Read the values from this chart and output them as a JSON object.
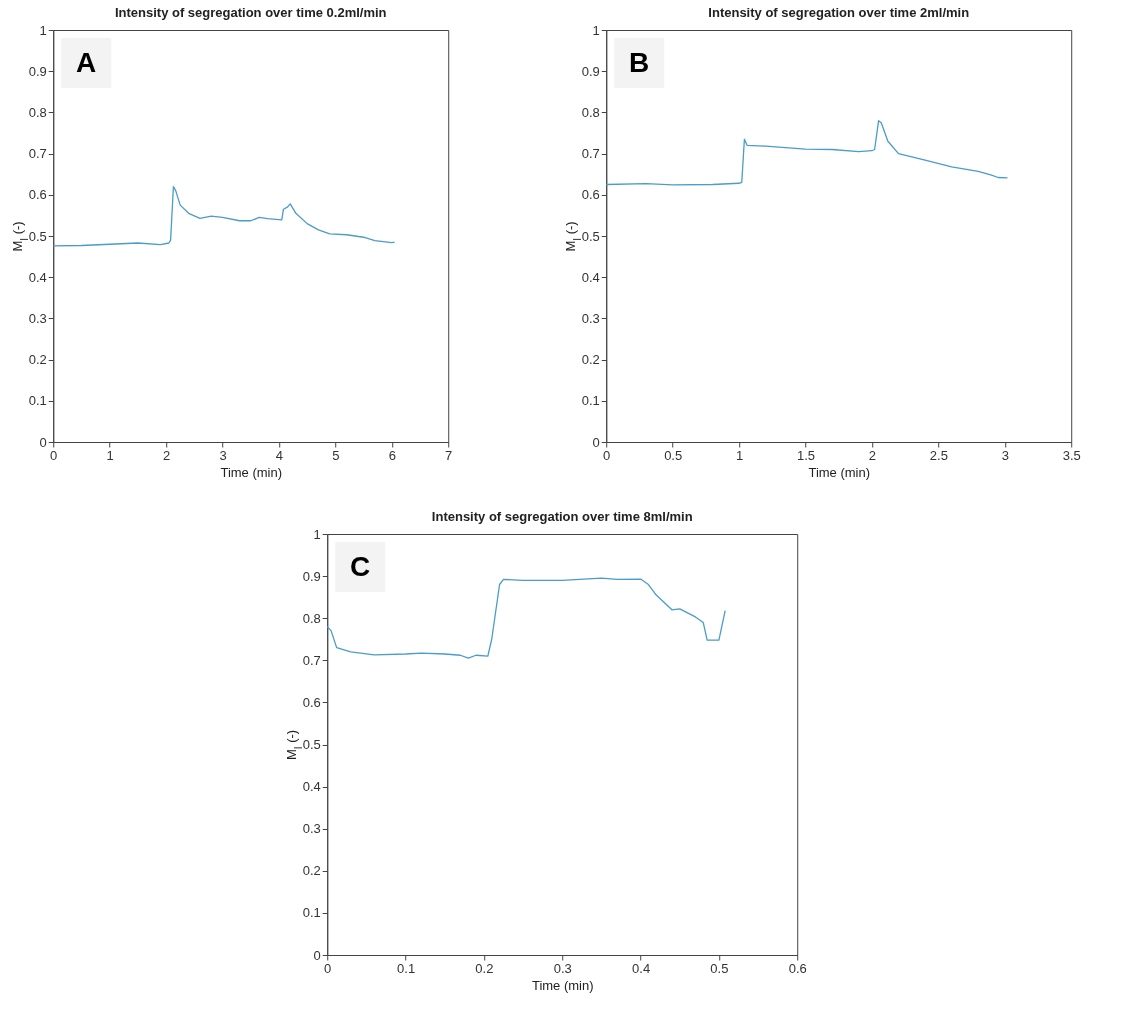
{
  "chart_data": [
    {
      "type": "line",
      "title": "Intensity of segregation over time 0.2ml/min",
      "xlabel": "Time (min)",
      "ylabel": "M$_{I}$ (-)",
      "annotations": [
        "A"
      ],
      "xlim": [
        0,
        7
      ],
      "xticks": [
        0,
        1,
        2,
        3,
        4,
        5,
        6,
        7
      ],
      "ylim": [
        0,
        1
      ],
      "yticks": [
        0,
        0.1,
        0.2,
        0.3,
        0.4,
        0.5,
        0.6,
        0.7,
        0.8,
        0.9,
        1
      ],
      "grid": false,
      "series": [
        {
          "color": "#4a9cc9",
          "x": [
            0,
            0.5,
            1,
            1.5,
            1.9,
            2.05,
            2.08,
            2.13,
            2.17,
            2.25,
            2.4,
            2.6,
            2.8,
            3.0,
            3.3,
            3.5,
            3.65,
            3.8,
            4.05,
            4.08,
            4.15,
            4.2,
            4.3,
            4.5,
            4.7,
            4.9,
            5.2,
            5.5,
            5.7,
            6.0,
            6.05
          ],
          "values": [
            0.476,
            0.477,
            0.48,
            0.483,
            0.479,
            0.483,
            0.49,
            0.62,
            0.61,
            0.575,
            0.555,
            0.543,
            0.548,
            0.545,
            0.537,
            0.537,
            0.545,
            0.542,
            0.539,
            0.565,
            0.57,
            0.578,
            0.555,
            0.53,
            0.515,
            0.505,
            0.503,
            0.497,
            0.489,
            0.484,
            0.485
          ]
        }
      ]
    },
    {
      "type": "line",
      "title": "Intensity of segregation over time 2ml/min",
      "xlabel": "Time (min)",
      "ylabel": "M$_{I}$ (-)",
      "annotations": [
        "B"
      ],
      "xlim": [
        0,
        3.5
      ],
      "xticks": [
        0,
        0.5,
        1,
        1.5,
        2,
        2.5,
        3,
        3.5
      ],
      "ylim": [
        0,
        1
      ],
      "yticks": [
        0,
        0.1,
        0.2,
        0.3,
        0.4,
        0.5,
        0.6,
        0.7,
        0.8,
        0.9,
        1
      ],
      "grid": false,
      "series": [
        {
          "color": "#4a9cc9",
          "x": [
            0,
            0.3,
            0.5,
            0.8,
            1.0,
            1.02,
            1.04,
            1.06,
            1.2,
            1.5,
            1.7,
            1.9,
            2.0,
            2.02,
            2.05,
            2.07,
            2.12,
            2.2,
            2.4,
            2.6,
            2.8,
            2.9,
            2.95,
            3.02
          ],
          "values": [
            0.625,
            0.627,
            0.624,
            0.625,
            0.628,
            0.63,
            0.735,
            0.72,
            0.718,
            0.711,
            0.71,
            0.705,
            0.707,
            0.71,
            0.78,
            0.775,
            0.73,
            0.7,
            0.684,
            0.668,
            0.657,
            0.648,
            0.642,
            0.641
          ]
        }
      ]
    },
    {
      "type": "line",
      "title": "Intensity of segregation over time 8ml/min",
      "xlabel": "Time (min)",
      "ylabel": "M$_{I}$ (-)",
      "annotations": [
        "C"
      ],
      "xlim": [
        0,
        0.6
      ],
      "xticks": [
        0,
        0.1,
        0.2,
        0.3,
        0.4,
        0.5,
        0.6
      ],
      "ylim": [
        0,
        1
      ],
      "yticks": [
        0,
        0.1,
        0.2,
        0.3,
        0.4,
        0.5,
        0.6,
        0.7,
        0.8,
        0.9,
        1
      ],
      "grid": false,
      "series": [
        {
          "color": "#4a9cc9",
          "x": [
            0,
            0.005,
            0.012,
            0.03,
            0.06,
            0.1,
            0.12,
            0.15,
            0.17,
            0.18,
            0.19,
            0.205,
            0.21,
            0.22,
            0.225,
            0.25,
            0.3,
            0.35,
            0.37,
            0.4,
            0.41,
            0.42,
            0.44,
            0.45,
            0.47,
            0.48,
            0.485,
            0.5,
            0.508
          ],
          "values": [
            0.78,
            0.77,
            0.73,
            0.72,
            0.713,
            0.715,
            0.717,
            0.715,
            0.712,
            0.705,
            0.712,
            0.71,
            0.75,
            0.88,
            0.892,
            0.89,
            0.89,
            0.895,
            0.892,
            0.893,
            0.88,
            0.855,
            0.82,
            0.822,
            0.803,
            0.79,
            0.748,
            0.748,
            0.818
          ]
        }
      ]
    }
  ]
}
